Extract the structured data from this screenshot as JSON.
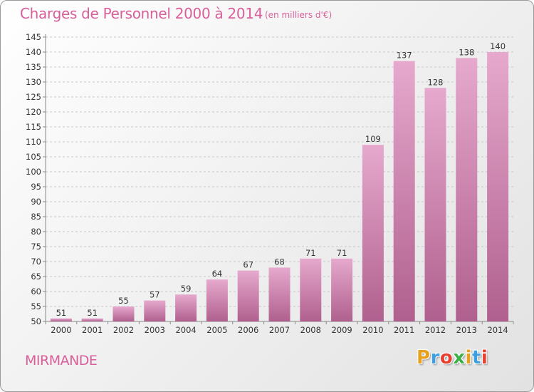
{
  "header": {
    "title": "Charges de Personnel 2000 à 2014",
    "unit_note": "(en milliers d'€)"
  },
  "footer": {
    "city": "MIRMANDE",
    "logo_letters": [
      "P",
      "r",
      "o",
      "x",
      "i",
      "t",
      "i"
    ],
    "logo_colors": [
      "#e8a020",
      "#3d9ee0",
      "#e84030",
      "#3db048",
      "#e8a020",
      "#3d9ee0",
      "#e84030"
    ]
  },
  "colors": {
    "accent": "#d8609a",
    "bar_top": "#e6a9cd",
    "bar_bottom": "#b0608e"
  },
  "chart_data": {
    "type": "bar",
    "title": "Charges de Personnel 2000 à 2014",
    "categories": [
      "2000",
      "2001",
      "2002",
      "2003",
      "2004",
      "2005",
      "2006",
      "2007",
      "2008",
      "2009",
      "2010",
      "2011",
      "2012",
      "2013",
      "2014"
    ],
    "values": [
      51,
      51,
      55,
      57,
      59,
      64,
      67,
      68,
      71,
      71,
      109,
      137,
      128,
      138,
      140
    ],
    "data_labels": [
      "51",
      "51",
      "55",
      "57",
      "59",
      "64",
      "67",
      "68",
      "71",
      "71",
      "109",
      "137",
      "128",
      "138",
      "140"
    ],
    "ylim": [
      50,
      145
    ],
    "yticks": [
      "50",
      "55",
      "60",
      "65",
      "70",
      "75",
      "80",
      "85",
      "90",
      "95",
      "100",
      "105",
      "110",
      "115",
      "120",
      "125",
      "130",
      "135",
      "140",
      "145"
    ],
    "grid": true,
    "xlabel": "",
    "ylabel": ""
  }
}
